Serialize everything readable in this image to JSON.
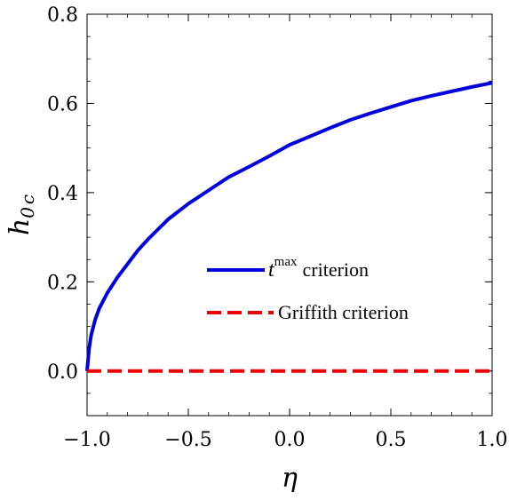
{
  "chart_data": {
    "type": "line",
    "xlabel": "η",
    "ylabel_main": "h",
    "ylabel_sub": "0",
    "ylabel_sub2": "c",
    "xlim": [
      -1.0,
      1.0
    ],
    "ylim": [
      -0.1,
      0.8
    ],
    "x_ticks": [
      -1.0,
      -0.5,
      0.0,
      0.5,
      1.0
    ],
    "x_tick_labels": [
      "−1.0",
      "−0.5",
      "0.0",
      "0.5",
      "1.0"
    ],
    "y_ticks": [
      0.0,
      0.2,
      0.4,
      0.6,
      0.8
    ],
    "y_tick_labels": [
      "0.0",
      "0.2",
      "0.4",
      "0.6",
      "0.8"
    ],
    "grid": false,
    "legend_position": "center-right",
    "series": [
      {
        "name": "criterion",
        "name_prefix": "t",
        "name_sup": "max",
        "color": "#0000dd",
        "style": "solid",
        "x": [
          -1.0,
          -0.99,
          -0.98,
          -0.96,
          -0.94,
          -0.9,
          -0.85,
          -0.8,
          -0.75,
          -0.7,
          -0.6,
          -0.5,
          -0.4,
          -0.3,
          -0.2,
          -0.1,
          0.0,
          0.1,
          0.2,
          0.3,
          0.4,
          0.5,
          0.6,
          0.7,
          0.8,
          0.9,
          1.0
        ],
        "y": [
          0.0,
          0.05,
          0.08,
          0.115,
          0.14,
          0.175,
          0.21,
          0.24,
          0.27,
          0.295,
          0.34,
          0.375,
          0.405,
          0.435,
          0.458,
          0.482,
          0.507,
          0.526,
          0.545,
          0.563,
          0.578,
          0.592,
          0.606,
          0.617,
          0.627,
          0.637,
          0.646
        ]
      },
      {
        "name": "Griffith criterion",
        "color": "#ee0000",
        "style": "dashed",
        "x": [
          -1.0,
          1.0
        ],
        "y": [
          0.0,
          0.0
        ]
      }
    ]
  }
}
